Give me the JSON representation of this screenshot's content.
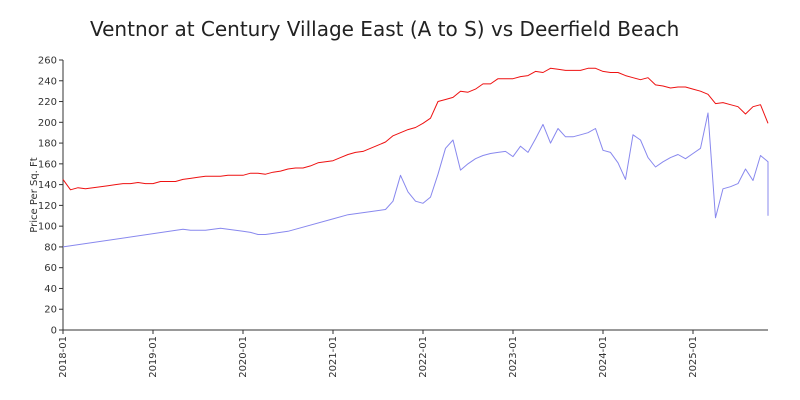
{
  "chart_data": {
    "type": "line",
    "title": "Ventnor at Century Village East (A to S) vs Deerfield Beach",
    "xlabel": "",
    "ylabel": "Price Per Sq. Ft",
    "xlim": [
      "2018-01",
      "2025-10"
    ],
    "ylim": [
      0,
      260
    ],
    "y_ticks": [
      0,
      20,
      40,
      60,
      80,
      100,
      120,
      140,
      160,
      180,
      200,
      220,
      240,
      260
    ],
    "x_ticks": [
      "2018-01",
      "2019-01",
      "2020-01",
      "2021-01",
      "2022-01",
      "2023-01",
      "2024-01",
      "2025-01"
    ],
    "grid": false,
    "legend": "none",
    "colors": {
      "deerfield": "#ee1111",
      "ventnor": "#8888ee"
    },
    "series": [
      {
        "key": "deerfield",
        "points": [
          [
            "2018-01",
            145
          ],
          [
            "2018-02",
            135
          ],
          [
            "2018-03",
            137
          ],
          [
            "2018-04",
            136
          ],
          [
            "2018-05",
            137
          ],
          [
            "2018-06",
            138
          ],
          [
            "2018-07",
            139
          ],
          [
            "2018-08",
            140
          ],
          [
            "2018-09",
            141
          ],
          [
            "2018-10",
            141
          ],
          [
            "2018-11",
            142
          ],
          [
            "2018-12",
            141
          ],
          [
            "2019-01",
            141
          ],
          [
            "2019-02",
            143
          ],
          [
            "2019-03",
            143
          ],
          [
            "2019-04",
            143
          ],
          [
            "2019-05",
            145
          ],
          [
            "2019-06",
            146
          ],
          [
            "2019-07",
            147
          ],
          [
            "2019-08",
            148
          ],
          [
            "2019-09",
            148
          ],
          [
            "2019-10",
            148
          ],
          [
            "2019-11",
            149
          ],
          [
            "2019-12",
            149
          ],
          [
            "2020-01",
            149
          ],
          [
            "2020-02",
            151
          ],
          [
            "2020-03",
            151
          ],
          [
            "2020-04",
            150
          ],
          [
            "2020-05",
            152
          ],
          [
            "2020-06",
            153
          ],
          [
            "2020-07",
            155
          ],
          [
            "2020-08",
            156
          ],
          [
            "2020-09",
            156
          ],
          [
            "2020-10",
            158
          ],
          [
            "2020-11",
            161
          ],
          [
            "2020-12",
            162
          ],
          [
            "2021-01",
            163
          ],
          [
            "2021-02",
            166
          ],
          [
            "2021-03",
            169
          ],
          [
            "2021-04",
            171
          ],
          [
            "2021-05",
            172
          ],
          [
            "2021-06",
            175
          ],
          [
            "2021-07",
            178
          ],
          [
            "2021-08",
            181
          ],
          [
            "2021-09",
            187
          ],
          [
            "2021-10",
            190
          ],
          [
            "2021-11",
            193
          ],
          [
            "2021-12",
            195
          ],
          [
            "2022-01",
            199
          ],
          [
            "2022-02",
            204
          ],
          [
            "2022-03",
            220
          ],
          [
            "2022-04",
            222
          ],
          [
            "2022-05",
            224
          ],
          [
            "2022-06",
            230
          ],
          [
            "2022-07",
            229
          ],
          [
            "2022-08",
            232
          ],
          [
            "2022-09",
            237
          ],
          [
            "2022-10",
            237
          ],
          [
            "2022-11",
            242
          ],
          [
            "2022-12",
            242
          ],
          [
            "2023-01",
            242
          ],
          [
            "2023-02",
            244
          ],
          [
            "2023-03",
            245
          ],
          [
            "2023-04",
            249
          ],
          [
            "2023-05",
            248
          ],
          [
            "2023-06",
            252
          ],
          [
            "2023-07",
            251
          ],
          [
            "2023-08",
            250
          ],
          [
            "2023-09",
            250
          ],
          [
            "2023-10",
            250
          ],
          [
            "2023-11",
            252
          ],
          [
            "2023-12",
            252
          ],
          [
            "2024-01",
            249
          ],
          [
            "2024-02",
            248
          ],
          [
            "2024-03",
            248
          ],
          [
            "2024-04",
            245
          ],
          [
            "2024-05",
            243
          ],
          [
            "2024-06",
            241
          ],
          [
            "2024-07",
            243
          ],
          [
            "2024-08",
            236
          ],
          [
            "2024-09",
            235
          ],
          [
            "2024-10",
            233
          ],
          [
            "2024-11",
            234
          ],
          [
            "2024-12",
            234
          ],
          [
            "2025-01",
            232
          ],
          [
            "2025-02",
            230
          ],
          [
            "2025-03",
            227
          ],
          [
            "2025-04",
            218
          ],
          [
            "2025-05",
            219
          ],
          [
            "2025-06",
            217
          ],
          [
            "2025-07",
            215
          ],
          [
            "2025-08",
            208
          ],
          [
            "2025-09",
            215
          ],
          [
            "2025-10",
            217
          ],
          [
            "2025-11",
            199
          ]
        ]
      },
      {
        "key": "ventnor",
        "points": [
          [
            "2018-01",
            80
          ],
          [
            "2019-05",
            97
          ],
          [
            "2019-06",
            96
          ],
          [
            "2019-07",
            96
          ],
          [
            "2019-08",
            96
          ],
          [
            "2019-10",
            98
          ],
          [
            "2020-01",
            95
          ],
          [
            "2020-02",
            94
          ],
          [
            "2020-03",
            92
          ],
          [
            "2020-04",
            92
          ],
          [
            "2020-07",
            95
          ],
          [
            "2021-01",
            107
          ],
          [
            "2021-03",
            111
          ],
          [
            "2021-06",
            114
          ],
          [
            "2021-08",
            116
          ],
          [
            "2021-09",
            124
          ],
          [
            "2021-10",
            149
          ],
          [
            "2021-11",
            133
          ],
          [
            "2021-12",
            124
          ],
          [
            "2022-01",
            122
          ],
          [
            "2022-02",
            128
          ],
          [
            "2022-03",
            150
          ],
          [
            "2022-04",
            175
          ],
          [
            "2022-05",
            183
          ],
          [
            "2022-06",
            154
          ],
          [
            "2022-07",
            160
          ],
          [
            "2022-08",
            165
          ],
          [
            "2022-09",
            168
          ],
          [
            "2022-10",
            170
          ],
          [
            "2022-11",
            171
          ],
          [
            "2022-12",
            172
          ],
          [
            "2023-01",
            167
          ],
          [
            "2023-02",
            177
          ],
          [
            "2023-03",
            171
          ],
          [
            "2023-04",
            184
          ],
          [
            "2023-05",
            198
          ],
          [
            "2023-06",
            180
          ],
          [
            "2023-07",
            194
          ],
          [
            "2023-08",
            186
          ],
          [
            "2023-09",
            186
          ],
          [
            "2023-10",
            188
          ],
          [
            "2023-11",
            190
          ],
          [
            "2023-12",
            194
          ],
          [
            "2024-01",
            173
          ],
          [
            "2024-02",
            171
          ],
          [
            "2024-03",
            161
          ],
          [
            "2024-04",
            145
          ],
          [
            "2024-05",
            188
          ],
          [
            "2024-06",
            183
          ],
          [
            "2024-07",
            166
          ],
          [
            "2024-08",
            157
          ],
          [
            "2024-09",
            162
          ],
          [
            "2024-10",
            166
          ],
          [
            "2024-11",
            169
          ],
          [
            "2024-12",
            165
          ],
          [
            "2025-01",
            170
          ],
          [
            "2025-02",
            175
          ],
          [
            "2025-03",
            209
          ],
          [
            "2025-04",
            108
          ],
          [
            "2025-05",
            136
          ],
          [
            "2025-06",
            138
          ],
          [
            "2025-07",
            141
          ],
          [
            "2025-08",
            155
          ],
          [
            "2025-09",
            144
          ],
          [
            "2025-10",
            168
          ],
          [
            "2025-11",
            162
          ],
          [
            "2025-12",
            136
          ],
          [
            "2026-01",
            110
          ]
        ]
      }
    ]
  }
}
